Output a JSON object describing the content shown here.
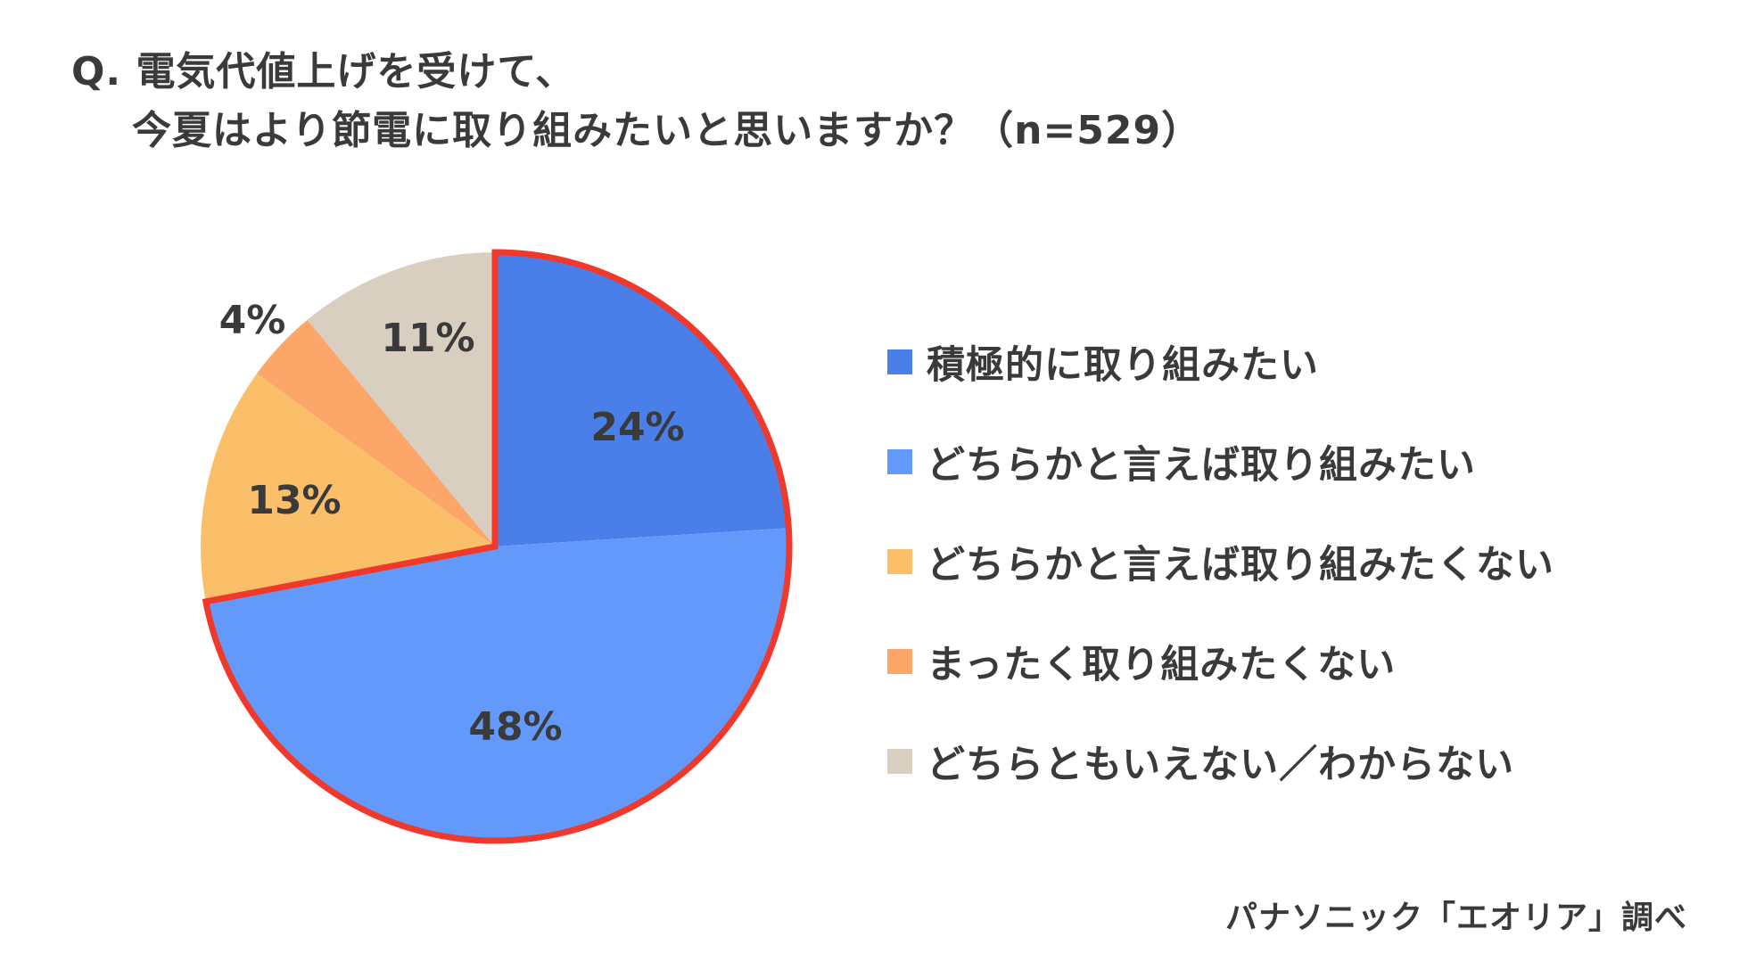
{
  "title": {
    "line1": "Q. 電気代値上げを受けて、",
    "line2": "今夏はより節電に取り組みたいと思いますか？（n=529）"
  },
  "source": "パナソニック「エオリア」調べ",
  "highlight_color": "#f0392b",
  "chart_data": {
    "type": "pie",
    "title": "Q. 電気代値上げを受けて、今夏はより節電に取り組みたいと思いますか？（n=529）",
    "start_angle_deg": 0,
    "direction": "clockwise",
    "legend_position": "right",
    "highlighted_slices": [
      0,
      1
    ],
    "slices": [
      {
        "label": "積極的に取り組みたい",
        "value": 24,
        "display": "24%",
        "color": "#4a7fe9"
      },
      {
        "label": "どちらかと言えば取り組みたい",
        "value": 48,
        "display": "48%",
        "color": "#6499fc"
      },
      {
        "label": "どちらかと言えば取り組みたくない",
        "value": 13,
        "display": "13%",
        "color": "#fbbf69"
      },
      {
        "label": "まったく取り組みたくない",
        "value": 4,
        "display": "4%",
        "color": "#fda66a"
      },
      {
        "label": "どちらともいえない／わからない",
        "value": 11,
        "display": "11%",
        "color": "#d8cfc1"
      }
    ]
  }
}
